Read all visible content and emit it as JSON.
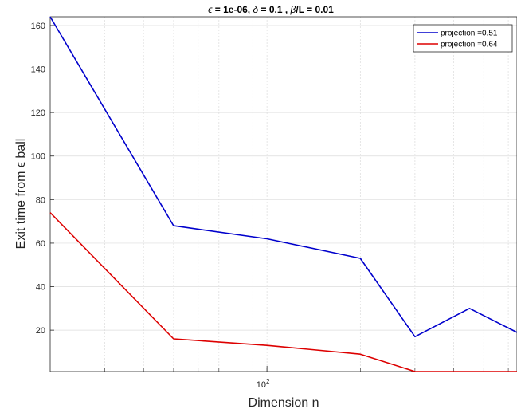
{
  "chart_data": {
    "type": "line",
    "title_parts": [
      "ϵ",
      " = 1e-06, ",
      "δ",
      " = 0.1 , ",
      "β",
      "/L = 0.01"
    ],
    "xlabel": "Dimension n",
    "ylabel": "Exit time from ϵ ball",
    "xscale": "log",
    "xlim": [
      20,
      640
    ],
    "ylim": [
      1,
      164
    ],
    "yticks": [
      20,
      40,
      60,
      80,
      100,
      120,
      140,
      160
    ],
    "xtick_labels": [
      {
        "value": 100,
        "base": "10",
        "exp": "2"
      }
    ],
    "grid": true,
    "legend_position": "top-right",
    "x": [
      20,
      50,
      100,
      200,
      300,
      450,
      640
    ],
    "series": [
      {
        "name": "projection =0.51",
        "color": "#0000cc",
        "values": [
          164,
          68,
          62,
          53,
          17,
          30,
          19
        ]
      },
      {
        "name": "projection =0.64",
        "color": "#dd0000",
        "values": [
          74,
          16,
          13,
          9,
          1,
          1,
          1
        ]
      }
    ]
  }
}
